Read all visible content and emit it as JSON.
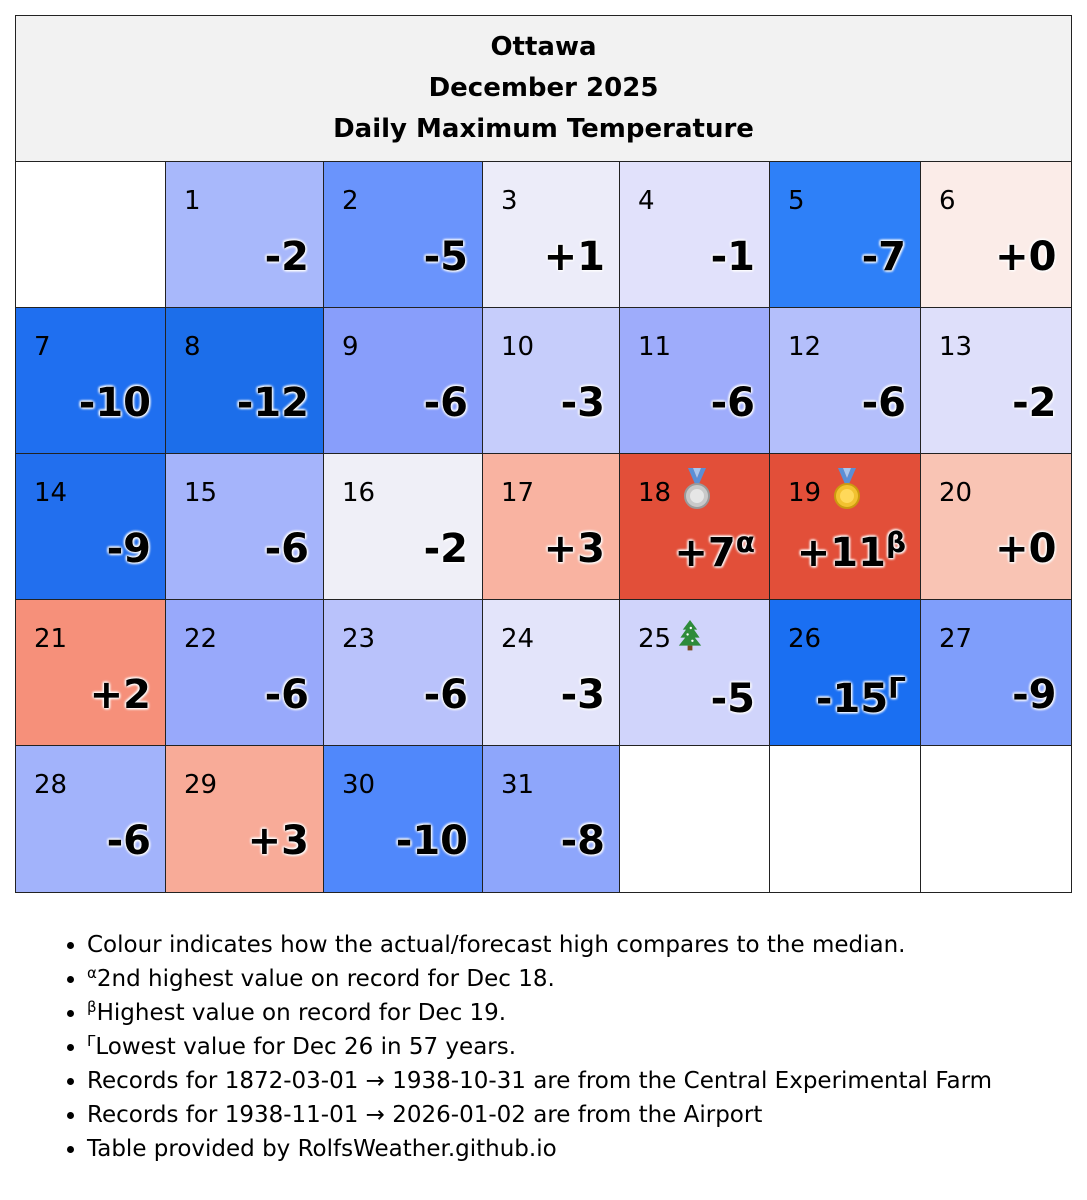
{
  "header": {
    "city": "Ottawa",
    "month": "December 2025",
    "metric": "Daily Maximum Temperature"
  },
  "days": [
    {
      "day": "1",
      "value": "-2",
      "color": "#a8b8fb"
    },
    {
      "day": "2",
      "value": "-5",
      "color": "#6a94fc"
    },
    {
      "day": "3",
      "value": "+1",
      "color": "#ececf9"
    },
    {
      "day": "4",
      "value": "-1",
      "color": "#e1e1fb"
    },
    {
      "day": "5",
      "value": "-7",
      "color": "#2e80f8"
    },
    {
      "day": "6",
      "value": "+0",
      "color": "#fbece8"
    },
    {
      "day": "7",
      "value": "-10",
      "color": "#1f6ff0"
    },
    {
      "day": "8",
      "value": "-12",
      "color": "#1c6eea"
    },
    {
      "day": "9",
      "value": "-6",
      "color": "#889efb"
    },
    {
      "day": "10",
      "value": "-3",
      "color": "#c6cdfb"
    },
    {
      "day": "11",
      "value": "-6",
      "color": "#9eacfb"
    },
    {
      "day": "12",
      "value": "-6",
      "color": "#b4bffb"
    },
    {
      "day": "13",
      "value": "-2",
      "color": "#dedffa"
    },
    {
      "day": "14",
      "value": "-9",
      "color": "#226fee"
    },
    {
      "day": "15",
      "value": "-6",
      "color": "#a5b4fb"
    },
    {
      "day": "16",
      "value": "-2",
      "color": "#efeff7"
    },
    {
      "day": "17",
      "value": "+3",
      "color": "#f9b3a1"
    },
    {
      "day": "18",
      "value": "+7",
      "color": "#e24f39",
      "mark": "α",
      "icon": "silver-medal"
    },
    {
      "day": "19",
      "value": "+11",
      "color": "#e24f39",
      "mark": "β",
      "icon": "gold-medal"
    },
    {
      "day": "20",
      "value": "+0",
      "color": "#f9c4b4"
    },
    {
      "day": "21",
      "value": "+2",
      "color": "#f6907a"
    },
    {
      "day": "22",
      "value": "-6",
      "color": "#98a9fb"
    },
    {
      "day": "23",
      "value": "-6",
      "color": "#b9c2fb"
    },
    {
      "day": "24",
      "value": "-3",
      "color": "#e3e4fa"
    },
    {
      "day": "25",
      "value": "-5",
      "color": "#d0d4fb",
      "icon": "christmas-tree"
    },
    {
      "day": "26",
      "value": "-15",
      "color": "#1a6ff2",
      "mark": "Γ"
    },
    {
      "day": "27",
      "value": "-9",
      "color": "#7f9efb"
    },
    {
      "day": "28",
      "value": "-6",
      "color": "#a2b3fb"
    },
    {
      "day": "29",
      "value": "+3",
      "color": "#f8ab98"
    },
    {
      "day": "30",
      "value": "-10",
      "color": "#5088fb"
    },
    {
      "day": "31",
      "value": "-8",
      "color": "#8ea6fb"
    }
  ],
  "notes": [
    {
      "mark": "",
      "text": "Colour indicates how the actual/forecast high compares to the median."
    },
    {
      "mark": "α",
      "text": "2nd highest value on record for Dec 18."
    },
    {
      "mark": "β",
      "text": "Highest value on record for Dec 19."
    },
    {
      "mark": "Γ",
      "text": "Lowest value for Dec 26 in 57 years."
    },
    {
      "mark": "",
      "text": "Records for 1872-03-01 → 1938-10-31 are from the Central Experimental Farm"
    },
    {
      "mark": "",
      "text": "Records for 1938-11-01 → 2026-01-02 are from the Airport"
    },
    {
      "mark": "",
      "text": "Table provided by RolfsWeather.github.io"
    }
  ]
}
